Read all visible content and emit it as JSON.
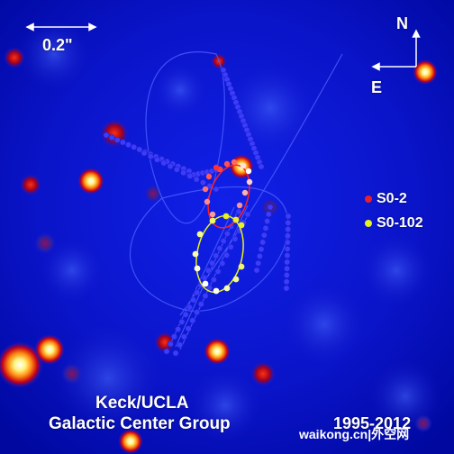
{
  "image": {
    "scale_bar": {
      "label": "0.2\""
    },
    "compass": {
      "north": "N",
      "east": "E"
    },
    "legend": [
      {
        "label": "S0-2",
        "color": "#e8202a"
      },
      {
        "label": "S0-102",
        "color": "#e8f21c"
      }
    ],
    "credit": {
      "line1": "Keck/UCLA",
      "line2": "Galactic Center Group"
    },
    "years": "1995-2012",
    "watermark": "waikong.cn|外空网",
    "colors": {
      "background": "#0a0fd0",
      "orbit_lines": "#4a5cff",
      "s02_orbit": "#ff2020",
      "s0102_orbit": "#e8f21c"
    }
  }
}
